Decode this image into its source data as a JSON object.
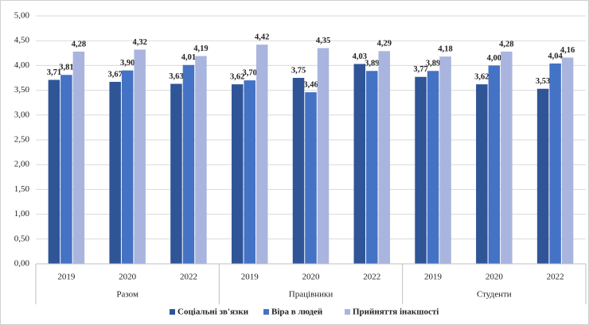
{
  "chart_data": {
    "type": "bar",
    "categories": [
      "2019",
      "2020",
      "2022",
      "2019",
      "2020",
      "2022",
      "2019",
      "2020",
      "2022"
    ],
    "category_groups": [
      "Разом",
      "Працівники",
      "Студенти"
    ],
    "series": [
      {
        "name": "Соціальні зв'язки",
        "color": "#2f5597",
        "values": [
          3.71,
          3.67,
          3.63,
          3.62,
          3.75,
          4.03,
          3.77,
          3.62,
          3.53
        ],
        "value_labels": [
          "3,71",
          "3,67",
          "3,63",
          "3,62",
          "3,75",
          "4,03",
          "3,77",
          "3,62",
          "3,53"
        ]
      },
      {
        "name": "Віра в людей",
        "color": "#4472c4",
        "values": [
          3.81,
          3.9,
          4.01,
          3.7,
          3.46,
          3.89,
          3.89,
          4.0,
          4.04
        ],
        "value_labels": [
          "3,81",
          "3,90",
          "4,01",
          "3,70",
          "3,46",
          "3,89",
          "3,89",
          "4,00",
          "4,04"
        ]
      },
      {
        "name": "Прийняття інакшості",
        "color": "#a9b5de",
        "values": [
          4.28,
          4.32,
          4.19,
          4.42,
          4.35,
          4.29,
          4.18,
          4.28,
          4.16
        ],
        "value_labels": [
          "4,28",
          "4,32",
          "4,19",
          "4,42",
          "4,35",
          "4,29",
          "4,18",
          "4,28",
          "4,16"
        ]
      }
    ],
    "ylim": [
      0,
      5
    ],
    "yticks": [
      {
        "value": 0,
        "label": "0,00"
      },
      {
        "value": 0.5,
        "label": "0,50"
      },
      {
        "value": 1,
        "label": "1,00"
      },
      {
        "value": 1.5,
        "label": "1,50"
      },
      {
        "value": 2,
        "label": "2,00"
      },
      {
        "value": 2.5,
        "label": "2,50"
      },
      {
        "value": 3,
        "label": "3,00"
      },
      {
        "value": 3.5,
        "label": "3,50"
      },
      {
        "value": 4,
        "label": "4,00"
      },
      {
        "value": 4.5,
        "label": "4,50"
      },
      {
        "value": 5,
        "label": "5,00"
      }
    ],
    "grid": true,
    "legend": "bottom"
  }
}
